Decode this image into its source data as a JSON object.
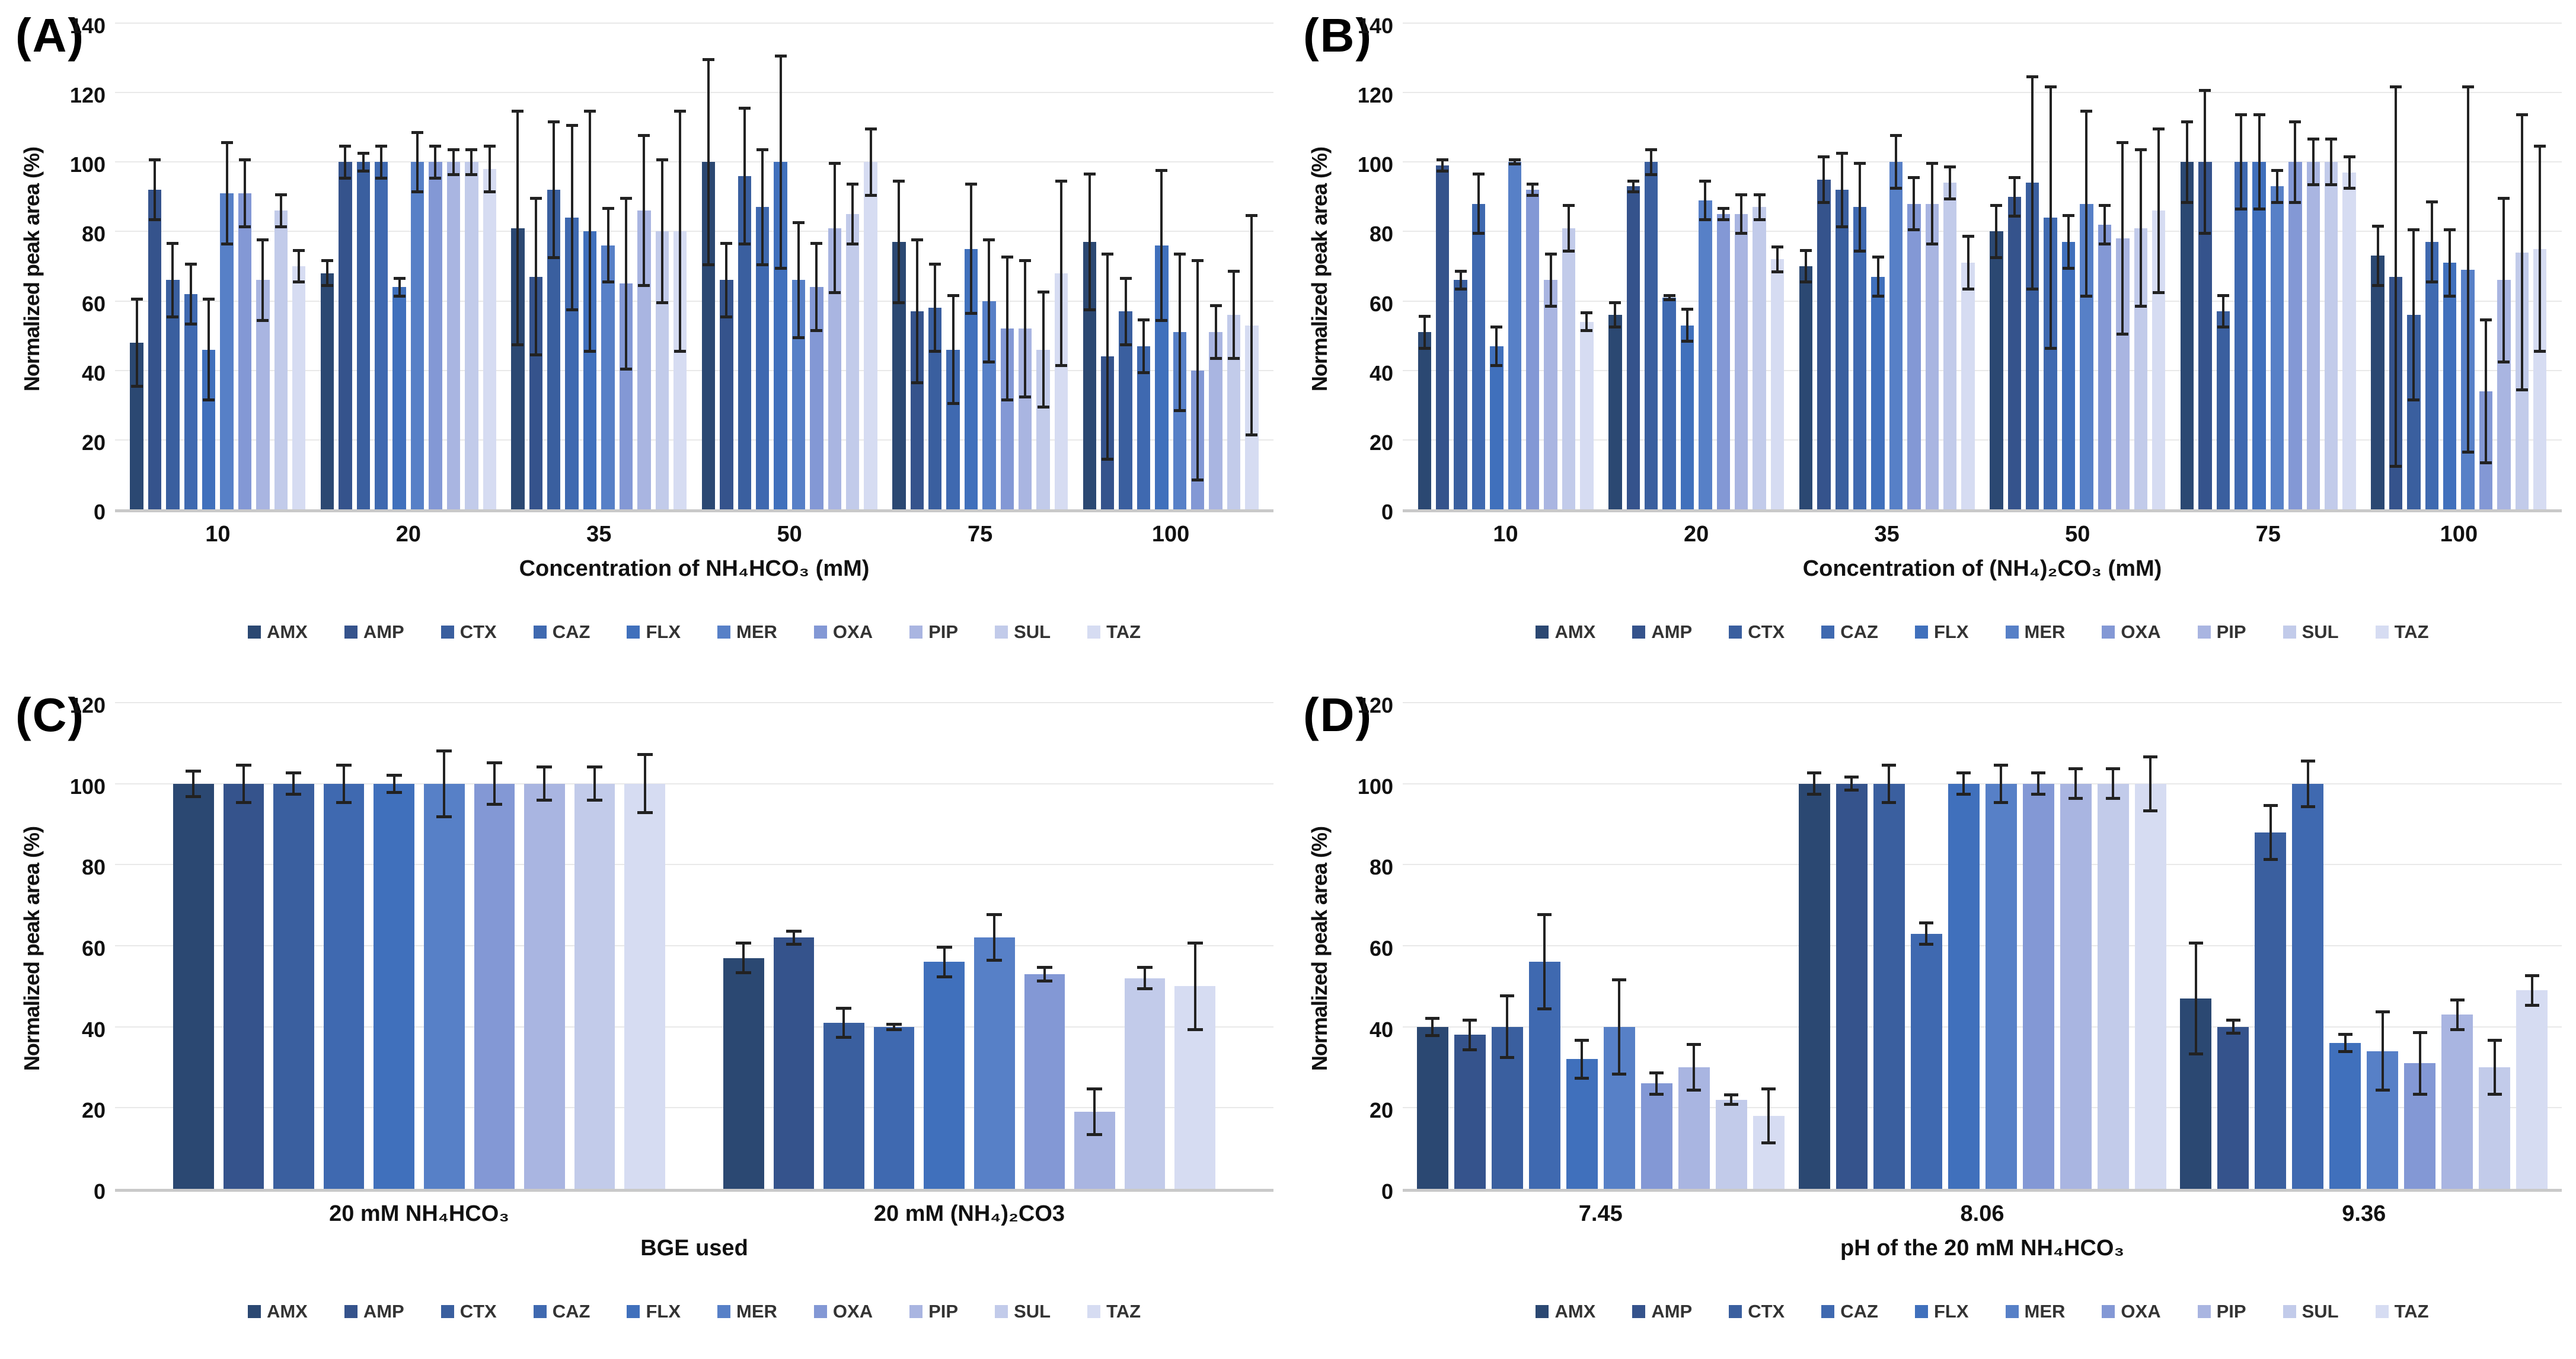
{
  "figure": {
    "background": "#ffffff",
    "legend_labels": [
      "AMX",
      "AMP",
      "CTX",
      "CAZ",
      "FLX",
      "MER",
      "OXA",
      "PIP",
      "SUL",
      "TAZ"
    ],
    "series_colors": [
      "#2b4872",
      "#35538c",
      "#3a5f9f",
      "#3f69b0",
      "#4070bc",
      "#5780c7",
      "#8398d5",
      "#a9b5e1",
      "#c2cbea",
      "#d6dcf2"
    ],
    "error_bar_color": "#222222",
    "gridline_color": "#e9e9e9",
    "axis_line_color": "#c9c9c9"
  },
  "chart_data": [
    {
      "type": "bar",
      "panel_label": "(A)",
      "xlabel": "Concentration of NH₄HCO₃ (mM)",
      "ylabel": "Normalized peak area (%)",
      "ylim": [
        0,
        140
      ],
      "ytick_step": 20,
      "grid": true,
      "legend_position": "bottom",
      "categories": [
        "10",
        "20",
        "35",
        "50",
        "75",
        "100"
      ],
      "series": [
        {
          "name": "AMX",
          "values": [
            48,
            68,
            81,
            100,
            77,
            77
          ],
          "errors": [
            13,
            4,
            34,
            30,
            18,
            20
          ]
        },
        {
          "name": "AMP",
          "values": [
            92,
            100,
            67,
            66,
            57,
            44
          ],
          "errors": [
            9,
            5,
            23,
            11,
            21,
            30
          ]
        },
        {
          "name": "CTX",
          "values": [
            66,
            100,
            92,
            96,
            58,
            57
          ],
          "errors": [
            11,
            3,
            20,
            20,
            13,
            10
          ]
        },
        {
          "name": "CAZ",
          "values": [
            62,
            100,
            84,
            87,
            46,
            47
          ],
          "errors": [
            9,
            5,
            27,
            17,
            16,
            8
          ]
        },
        {
          "name": "FLX",
          "values": [
            46,
            64,
            80,
            100,
            75,
            76
          ],
          "errors": [
            15,
            3,
            35,
            31,
            19,
            22
          ]
        },
        {
          "name": "MER",
          "values": [
            91,
            100,
            76,
            66,
            60,
            51
          ],
          "errors": [
            15,
            9,
            11,
            17,
            18,
            23
          ]
        },
        {
          "name": "OXA",
          "values": [
            91,
            100,
            65,
            64,
            52,
            40
          ],
          "errors": [
            10,
            5,
            25,
            13,
            21,
            32
          ]
        },
        {
          "name": "PIP",
          "values": [
            66,
            100,
            86,
            81,
            52,
            51
          ],
          "errors": [
            12,
            4,
            22,
            19,
            20,
            8
          ]
        },
        {
          "name": "SUL",
          "values": [
            86,
            100,
            80,
            85,
            46,
            56
          ],
          "errors": [
            5,
            4,
            21,
            9,
            17,
            13
          ]
        },
        {
          "name": "TAZ",
          "values": [
            70,
            98,
            80,
            100,
            68,
            53
          ],
          "errors": [
            5,
            7,
            35,
            10,
            27,
            32
          ]
        }
      ]
    },
    {
      "type": "bar",
      "panel_label": "(B)",
      "xlabel": "Concentration of (NH₄)₂CO₃ (mM)",
      "ylabel": "Normalized peak area (%)",
      "ylim": [
        0,
        140
      ],
      "ytick_step": 20,
      "grid": true,
      "legend_position": "bottom",
      "categories": [
        "10",
        "20",
        "35",
        "50",
        "75",
        "100"
      ],
      "series": [
        {
          "name": "AMX",
          "values": [
            51,
            56,
            70,
            80,
            100,
            73
          ],
          "errors": [
            5,
            4,
            5,
            8,
            12,
            9
          ]
        },
        {
          "name": "AMP",
          "values": [
            99,
            93,
            95,
            90,
            100,
            67
          ],
          "errors": [
            2,
            2,
            7,
            6,
            21,
            55
          ]
        },
        {
          "name": "CTX",
          "values": [
            66,
            100,
            92,
            94,
            57,
            56
          ],
          "errors": [
            3,
            4,
            11,
            31,
            5,
            25
          ]
        },
        {
          "name": "CAZ",
          "values": [
            88,
            61,
            87,
            84,
            100,
            77
          ],
          "errors": [
            9,
            1,
            13,
            38,
            14,
            12
          ]
        },
        {
          "name": "FLX",
          "values": [
            47,
            53,
            67,
            77,
            100,
            71
          ],
          "errors": [
            6,
            5,
            6,
            8,
            14,
            10
          ]
        },
        {
          "name": "MER",
          "values": [
            100,
            89,
            100,
            88,
            93,
            69
          ],
          "errors": [
            1,
            6,
            8,
            27,
            5,
            53
          ]
        },
        {
          "name": "OXA",
          "values": [
            92,
            85,
            88,
            82,
            100,
            34
          ],
          "errors": [
            2,
            2,
            8,
            6,
            12,
            21
          ]
        },
        {
          "name": "PIP",
          "values": [
            66,
            85,
            88,
            78,
            100,
            66
          ],
          "errors": [
            8,
            6,
            12,
            28,
            7,
            24
          ]
        },
        {
          "name": "SUL",
          "values": [
            81,
            87,
            94,
            81,
            100,
            74
          ],
          "errors": [
            7,
            4,
            5,
            23,
            7,
            40
          ]
        },
        {
          "name": "TAZ",
          "values": [
            54,
            72,
            71,
            86,
            97,
            75
          ],
          "errors": [
            3,
            4,
            8,
            24,
            5,
            30
          ]
        }
      ]
    },
    {
      "type": "bar",
      "panel_label": "(C)",
      "xlabel": "BGE used",
      "ylabel": "Normalized peak area (%)",
      "ylim": [
        0,
        120
      ],
      "ytick_step": 20,
      "grid": true,
      "legend_position": "bottom",
      "categories": [
        "20 mM NH₄HCO₃",
        "20 mM (NH₄)₂CO3"
      ],
      "series": [
        {
          "name": "AMX",
          "values": [
            100,
            57
          ],
          "errors": [
            3.5,
            4
          ]
        },
        {
          "name": "AMP",
          "values": [
            100,
            62
          ],
          "errors": [
            5,
            2
          ]
        },
        {
          "name": "CTX",
          "values": [
            100,
            41
          ],
          "errors": [
            3,
            4
          ]
        },
        {
          "name": "CAZ",
          "values": [
            100,
            40
          ],
          "errors": [
            5,
            1
          ]
        },
        {
          "name": "FLX",
          "values": [
            100,
            56
          ],
          "errors": [
            2.5,
            4
          ]
        },
        {
          "name": "MER",
          "values": [
            100,
            62
          ],
          "errors": [
            8.5,
            6
          ]
        },
        {
          "name": "OXA",
          "values": [
            100,
            53
          ],
          "errors": [
            5.5,
            2
          ]
        },
        {
          "name": "PIP",
          "values": [
            100,
            19
          ],
          "errors": [
            4.5,
            6
          ]
        },
        {
          "name": "SUL",
          "values": [
            100,
            52
          ],
          "errors": [
            4.5,
            3
          ]
        },
        {
          "name": "TAZ",
          "values": [
            100,
            50
          ],
          "errors": [
            7.5,
            11
          ]
        }
      ]
    },
    {
      "type": "bar",
      "panel_label": "(D)",
      "xlabel": "pH of the 20 mM NH₄HCO₃",
      "ylabel": "Normalized peak area (%)",
      "ylim": [
        0,
        120
      ],
      "ytick_step": 20,
      "grid": true,
      "legend_position": "bottom",
      "categories": [
        "7.45",
        "8.06",
        "9.36"
      ],
      "series": [
        {
          "name": "AMX",
          "values": [
            40,
            100,
            47
          ],
          "errors": [
            2.5,
            3,
            14
          ]
        },
        {
          "name": "AMP",
          "values": [
            38,
            100,
            40
          ],
          "errors": [
            4,
            2,
            2
          ]
        },
        {
          "name": "CTX",
          "values": [
            40,
            100,
            88
          ],
          "errors": [
            8,
            5,
            7
          ]
        },
        {
          "name": "CAZ",
          "values": [
            56,
            63,
            100
          ],
          "errors": [
            12,
            3,
            6
          ]
        },
        {
          "name": "FLX",
          "values": [
            32,
            100,
            36
          ],
          "errors": [
            5,
            3,
            2.5
          ]
        },
        {
          "name": "MER",
          "values": [
            40,
            100,
            34
          ],
          "errors": [
            12,
            5,
            10
          ]
        },
        {
          "name": "OXA",
          "values": [
            26,
            100,
            31
          ],
          "errors": [
            3,
            3,
            8
          ]
        },
        {
          "name": "PIP",
          "values": [
            30,
            100,
            43
          ],
          "errors": [
            6,
            4,
            4
          ]
        },
        {
          "name": "SUL",
          "values": [
            22,
            100,
            30
          ],
          "errors": [
            1.5,
            4,
            7
          ]
        },
        {
          "name": "TAZ",
          "values": [
            18,
            100,
            49
          ],
          "errors": [
            7,
            7,
            4
          ]
        }
      ]
    }
  ]
}
